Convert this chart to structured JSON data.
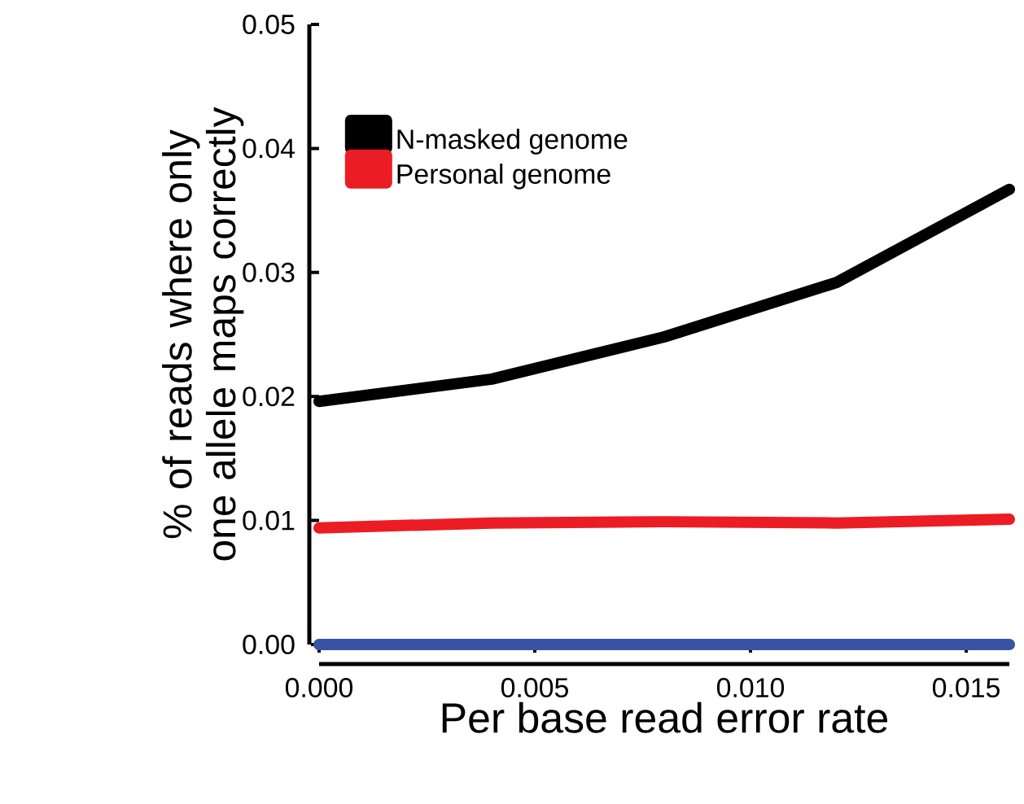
{
  "chart_data": {
    "type": "line",
    "xlabel": "Per base read error rate",
    "ylabel": "% of reads where only one allele maps correctly",
    "x": [
      0,
      0.004,
      0.008,
      0.012,
      0.016
    ],
    "series": [
      {
        "name": "N-masked genome",
        "color": "#000000",
        "values": [
          0.0196,
          0.0214,
          0.0248,
          0.0292,
          0.0367
        ]
      },
      {
        "name": "Personal genome",
        "color": "#ec1c24",
        "values": [
          0.0094,
          0.0098,
          0.0099,
          0.0098,
          0.0101
        ]
      },
      {
        "color": "#3953a4",
        "values": [
          0,
          0,
          0,
          0,
          0
        ]
      }
    ],
    "xlim": [
      0,
      0.016
    ],
    "ylim": [
      0,
      0.05
    ],
    "xticks": [
      {
        "value": 0,
        "label": "0.000"
      },
      {
        "value": 0.005,
        "label": "0.005"
      },
      {
        "value": 0.01,
        "label": "0.010"
      },
      {
        "value": 0.015,
        "label": "0.015"
      }
    ],
    "yticks": [
      {
        "value": 0,
        "label": "0.00"
      },
      {
        "value": 0.01,
        "label": "0.01"
      },
      {
        "value": 0.02,
        "label": "0.02"
      },
      {
        "value": 0.03,
        "label": "0.03"
      },
      {
        "value": 0.04,
        "label": "0.04"
      },
      {
        "value": 0.05,
        "label": "0.05"
      }
    ],
    "legend": "top left",
    "grid": false
  }
}
